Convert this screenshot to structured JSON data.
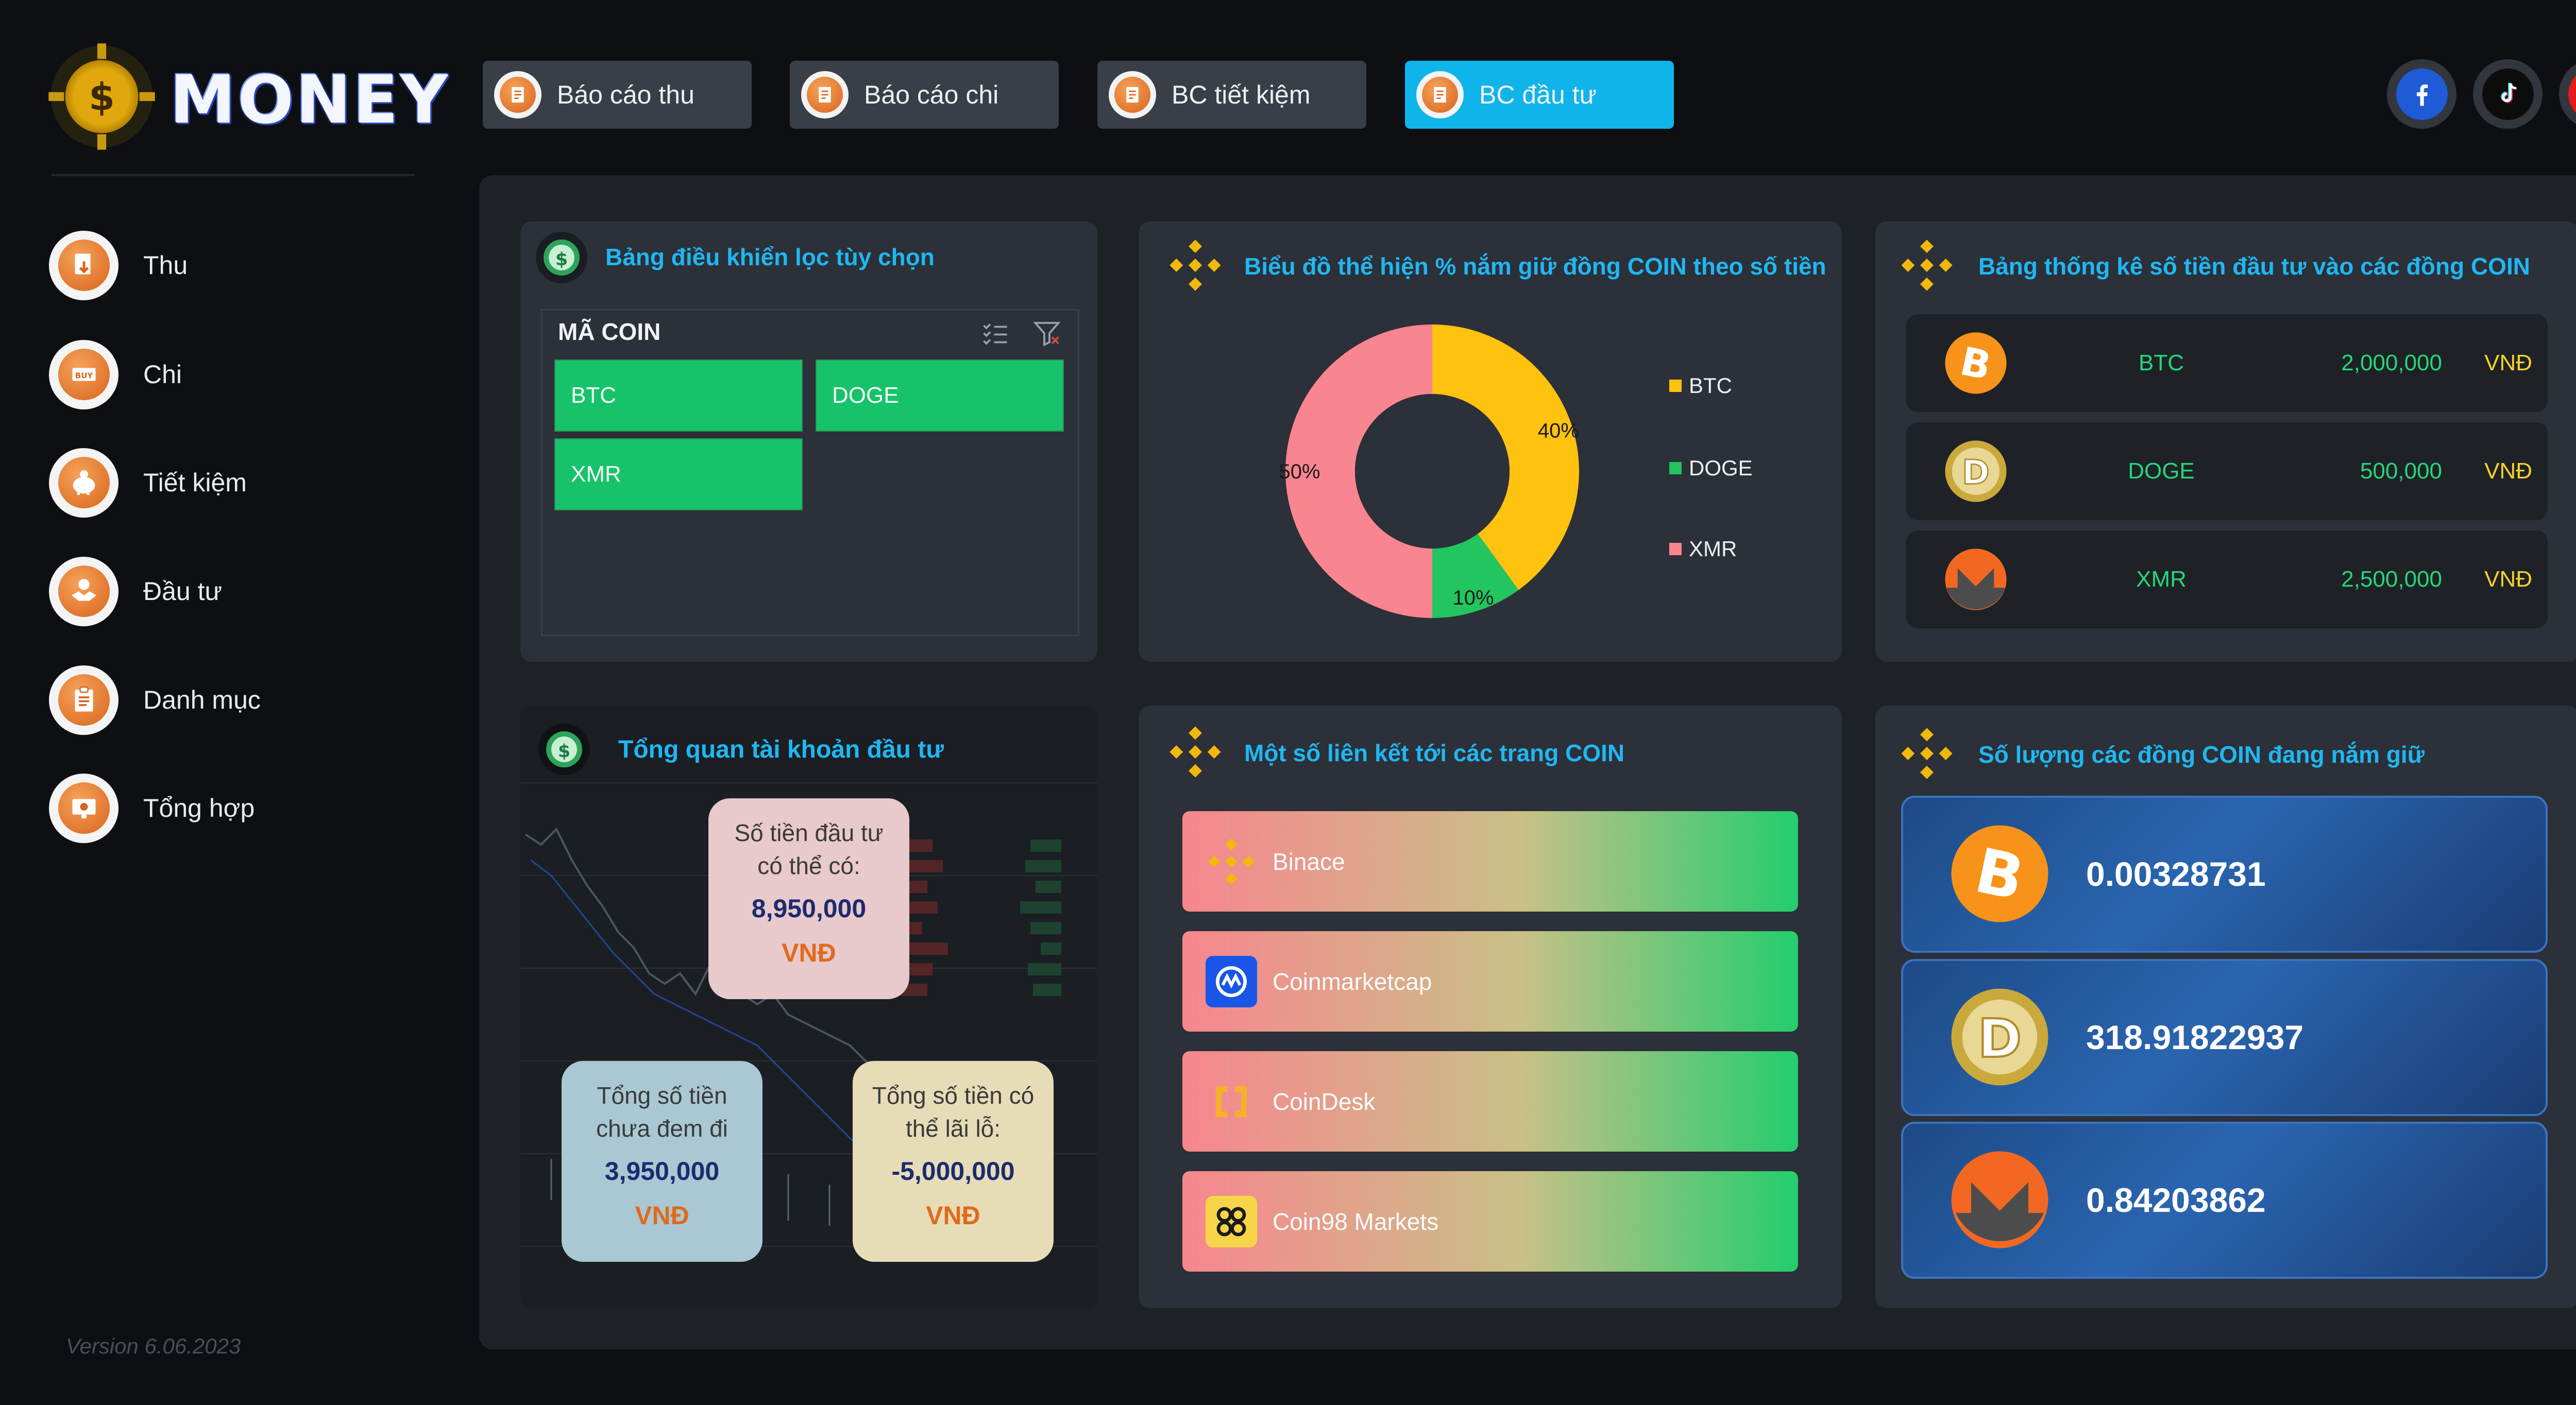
{
  "app": {
    "logo_text": "MONEY",
    "version": "Version 6.06.2023"
  },
  "sidebar": {
    "items": [
      {
        "label": "Thu",
        "icon": "income-icon"
      },
      {
        "label": "Chi",
        "icon": "expense-icon"
      },
      {
        "label": "Tiết kiệm",
        "icon": "piggy-bank-icon"
      },
      {
        "label": "Đầu tư",
        "icon": "handshake-coin-icon"
      },
      {
        "label": "Danh mục",
        "icon": "clipboard-icon"
      },
      {
        "label": "Tổng hợp",
        "icon": "monitor-chart-icon"
      }
    ]
  },
  "tabs": [
    {
      "label": "Báo cáo thu",
      "active": false
    },
    {
      "label": "Báo cáo chi",
      "active": false
    },
    {
      "label": "BC tiết kiệm",
      "active": false
    },
    {
      "label": "BC đầu tư",
      "active": true
    }
  ],
  "social": [
    "facebook-icon",
    "tiktok-icon",
    "youtube-icon"
  ],
  "filter_panel": {
    "title": "Bảng điều khiển lọc tùy chọn",
    "header": "MÃ COIN",
    "chips": [
      "BTC",
      "DOGE",
      "XMR"
    ]
  },
  "donut_panel": {
    "title": "Biểu đồ thể hiện % nắm giữ đồng COIN theo số tiền",
    "legend": [
      "BTC",
      "DOGE",
      "XMR"
    ]
  },
  "chart_data": {
    "type": "pie",
    "categories": [
      "BTC",
      "DOGE",
      "XMR"
    ],
    "values": [
      40,
      10,
      50
    ],
    "data_labels": [
      "40%",
      "10%",
      "50%"
    ],
    "colors": [
      "#ffc20e",
      "#22c55e",
      "#f98590"
    ],
    "legend_position": "right"
  },
  "stats_panel": {
    "title": "Bảng thống kê số tiền đầu tư vào các đồng COIN",
    "rows": [
      {
        "coin": "BTC",
        "amount": "2,000,000",
        "unit": "VNĐ"
      },
      {
        "coin": "DOGE",
        "amount": "500,000",
        "unit": "VNĐ"
      },
      {
        "coin": "XMR",
        "amount": "2,500,000",
        "unit": "VNĐ"
      }
    ]
  },
  "overview_panel": {
    "title": "Tổng quan tài khoản đầu tư",
    "cards": [
      {
        "label_1": "Số tiền đầu tư",
        "label_2": "có thể có:",
        "value": "8,950,000",
        "unit": "VNĐ",
        "color": "#e8c9cc"
      },
      {
        "label_1": "Tổng số tiền",
        "label_2": "chưa đem đi",
        "value": "3,950,000",
        "unit": "VNĐ",
        "color": "#a9c8d4"
      },
      {
        "label_1": "Tổng số tiền có",
        "label_2": "thể lãi lỗ:",
        "value": "-5,000,000",
        "unit": "VNĐ",
        "color": "#e7dcb8"
      }
    ]
  },
  "links_panel": {
    "title": "Một số liên kết tới các trang COIN",
    "links": [
      {
        "label": "Binace",
        "icon": "binance-icon"
      },
      {
        "label": "Coinmarketcap",
        "icon": "coinmarketcap-icon"
      },
      {
        "label": "CoinDesk",
        "icon": "coindesk-icon"
      },
      {
        "label": "Coin98 Markets",
        "icon": "coin98-icon"
      }
    ]
  },
  "holdings_panel": {
    "title": "Số lượng các đồng COIN đang nắm giữ",
    "items": [
      {
        "coin_icon": "bitcoin-icon",
        "value": "0.00328731"
      },
      {
        "coin_icon": "dogecoin-icon",
        "value": "318.91822937"
      },
      {
        "coin_icon": "monero-icon",
        "value": "0.84203862"
      }
    ]
  }
}
